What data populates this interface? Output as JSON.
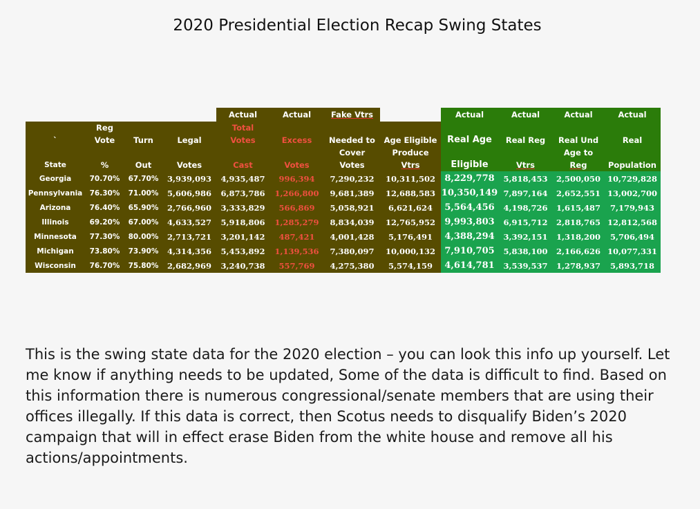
{
  "title": "2020 Presidential Election Recap Swing States",
  "header": {
    "row1": [
      "",
      "",
      "",
      "",
      "Actual",
      "Actual",
      "Fake Vtrs",
      "",
      "Actual",
      "Actual",
      "Actual",
      "Actual"
    ],
    "row2": [
      "",
      "Reg",
      "",
      "",
      "Total",
      "",
      "",
      "",
      "",
      "",
      "",
      ""
    ],
    "row3": [
      "`",
      "Vote",
      "Turn",
      "Legal",
      "Votes",
      "Excess",
      "Needed to",
      "Age Eligible",
      "Real Age",
      "Real Reg",
      "Real Und",
      "Real"
    ],
    "row4": [
      "",
      "",
      "",
      "",
      "",
      "",
      "Cover",
      "Produce",
      "",
      "",
      "Age to",
      ""
    ],
    "row5": [
      "State",
      "%",
      "Out",
      "Votes",
      "Cast",
      "Votes",
      "Votes",
      "Vtrs",
      "Eligible",
      "Vtrs",
      "Reg",
      "Population"
    ]
  },
  "rows": [
    [
      "Georgia",
      "70.70%",
      "67.70%",
      "3,939,093",
      "4,935,487",
      "996,394",
      "7,290,232",
      "10,311,502",
      "8,229,778",
      "5,818,453",
      "2,500,050",
      "10,729,828"
    ],
    [
      "Pennsylvania",
      "76.30%",
      "71.00%",
      "5,606,986",
      "6,873,786",
      "1,266,800",
      "9,681,389",
      "12,688,583",
      "10,350,149",
      "7,897,164",
      "2,652,551",
      "13,002,700"
    ],
    [
      "Arizona",
      "76.40%",
      "65.90%",
      "2,766,960",
      "3,333,829",
      "566,869",
      "5,058,921",
      "6,621,624",
      "5,564,456",
      "4,198,726",
      "1,615,487",
      "7,179,943"
    ],
    [
      "Illinois",
      "69.20%",
      "67.00%",
      "4,633,527",
      "5,918,806",
      "1,285,279",
      "8,834,039",
      "12,765,952",
      "9,993,803",
      "6,915,712",
      "2,818,765",
      "12,812,568"
    ],
    [
      "Minnesota",
      "77.30%",
      "80.00%",
      "2,713,721",
      "3,201,142",
      "487,421",
      "4,001,428",
      "5,176,491",
      "4,388,294",
      "3,392,151",
      "1,318,200",
      "5,706,494"
    ],
    [
      "Michigan",
      "73.80%",
      "73.90%",
      "4,314,356",
      "5,453,892",
      "1,139,536",
      "7,380,097",
      "10,000,132",
      "7,910,705",
      "5,838,100",
      "2,166,626",
      "10,077,331"
    ],
    [
      "Wisconsin",
      "76.70%",
      "75.80%",
      "2,682,969",
      "3,240,738",
      "557,769",
      "4,275,380",
      "5,574,159",
      "4,614,781",
      "3,539,537",
      "1,278,937",
      "5,893,718"
    ]
  ],
  "paragraph": "This is the swing state data for the 2020 election – you can look this info up yourself. Let me know if anything needs to be updated, Some of the data is difficult to find. Based on this information there is numerous congressional/senate members that are using their offices illegally. If this data is correct, then Scotus needs to disqualify Biden’s 2020 campaign that will in effect erase Biden from the white house and remove all his actions/appointments."
}
